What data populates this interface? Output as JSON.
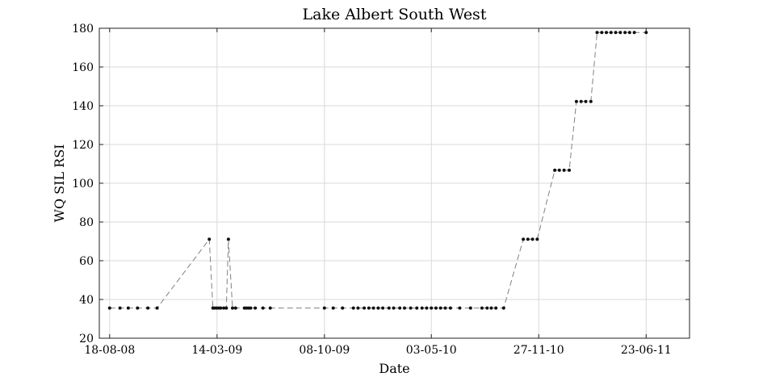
{
  "chart_data": {
    "type": "line",
    "title": "Lake Albert South West",
    "xlabel": "Date",
    "ylabel": "WQ SIL RSI",
    "x_type": "date",
    "xlim": [
      "2008-07-29",
      "2011-09-15"
    ],
    "ylim": [
      20,
      180
    ],
    "x_ticks": [
      "2008-08-18",
      "2009-03-14",
      "2009-10-08",
      "2010-05-03",
      "2010-11-27",
      "2011-06-23"
    ],
    "x_tick_labels": [
      "18-08-08",
      "14-03-09",
      "08-10-09",
      "03-05-10",
      "27-11-10",
      "23-06-11"
    ],
    "y_ticks": [
      20,
      40,
      60,
      80,
      100,
      120,
      140,
      160,
      180
    ],
    "grid": true,
    "line_style": "dashed",
    "line_color": "#808080",
    "marker_color": "#111111",
    "series": [
      {
        "x": [
          "2008-08-18",
          "2008-09-07",
          "2008-09-23",
          "2008-10-11",
          "2008-10-31",
          "2008-11-18",
          "2009-02-27",
          "2009-03-06",
          "2009-03-09",
          "2009-03-13",
          "2009-03-17",
          "2009-03-21",
          "2009-03-27",
          "2009-04-01",
          "2009-04-05",
          "2009-04-13",
          "2009-04-19",
          "2009-05-06",
          "2009-05-10",
          "2009-05-14",
          "2009-05-18",
          "2009-05-27",
          "2009-06-11",
          "2009-06-25",
          "2009-10-08",
          "2009-10-25",
          "2009-11-12",
          "2009-12-03",
          "2009-12-12",
          "2009-12-24",
          "2010-01-02",
          "2010-01-11",
          "2010-01-20",
          "2010-01-29",
          "2010-02-10",
          "2010-02-19",
          "2010-03-03",
          "2010-03-12",
          "2010-03-24",
          "2010-04-05",
          "2010-04-15",
          "2010-04-24",
          "2010-05-03",
          "2010-05-12",
          "2010-05-21",
          "2010-05-30",
          "2010-06-09",
          "2010-06-27",
          "2010-07-18",
          "2010-08-09",
          "2010-08-19",
          "2010-08-27",
          "2010-09-05",
          "2010-09-20",
          "2010-10-28",
          "2010-11-06",
          "2010-11-15",
          "2010-11-24",
          "2010-12-28",
          "2011-01-06",
          "2011-01-15",
          "2011-01-25",
          "2011-02-08",
          "2011-02-17",
          "2011-02-26",
          "2011-03-08",
          "2011-03-20",
          "2011-03-29",
          "2011-04-07",
          "2011-04-16",
          "2011-04-25",
          "2011-05-04",
          "2011-05-13",
          "2011-05-22",
          "2011-05-31",
          "2011-06-23"
        ],
        "y": [
          35.6,
          35.6,
          35.6,
          35.6,
          35.6,
          35.6,
          71.1,
          35.6,
          35.6,
          35.6,
          35.6,
          35.6,
          35.6,
          35.6,
          71.1,
          35.6,
          35.6,
          35.6,
          35.6,
          35.6,
          35.6,
          35.6,
          35.6,
          35.6,
          35.6,
          35.6,
          35.6,
          35.6,
          35.6,
          35.6,
          35.6,
          35.6,
          35.6,
          35.6,
          35.6,
          35.6,
          35.6,
          35.6,
          35.6,
          35.6,
          35.6,
          35.6,
          35.6,
          35.6,
          35.6,
          35.6,
          35.6,
          35.6,
          35.6,
          35.6,
          35.6,
          35.6,
          35.6,
          35.6,
          71.1,
          71.1,
          71.1,
          71.1,
          106.7,
          106.7,
          106.7,
          106.7,
          142.2,
          142.2,
          142.2,
          142.2,
          177.8,
          177.8,
          177.8,
          177.8,
          177.8,
          177.8,
          177.8,
          177.8,
          177.8,
          177.8
        ]
      }
    ]
  }
}
